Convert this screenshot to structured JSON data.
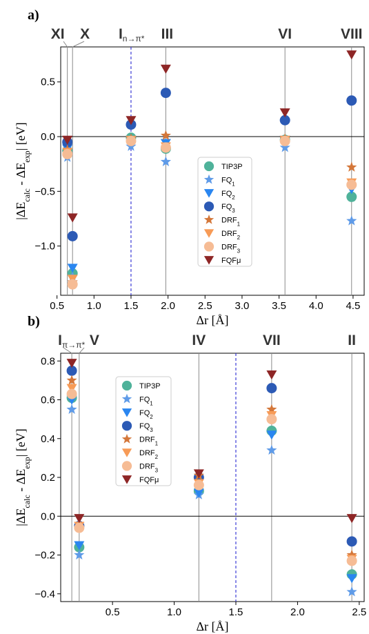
{
  "colors": {
    "TIP3P": "#4fb29a",
    "FQ1": "#5f9be8",
    "FQ2": "#2a86f0",
    "FQ3": "#2c5ab5",
    "DRF1": "#d4773a",
    "DRF2": "#f79b57",
    "DRF3": "#f6bc95",
    "FQFmu": "#8e2626",
    "guide_line": "#8a8a8a",
    "threshold_line": "#3a3ad6"
  },
  "chart_data": [
    {
      "panel_label": "a)",
      "type": "scatter",
      "xlabel": "Δr [Å]",
      "ylabel": "|ΔE_calc - ΔE_exp| [eV]",
      "xlim": [
        0.55,
        4.65
      ],
      "ylim": [
        -1.45,
        0.82
      ],
      "x_ticks": [
        "0.5",
        "1.0",
        "1.5",
        "2.0",
        "2.5",
        "3.0",
        "3.5",
        "4.0",
        "4.5"
      ],
      "y_ticks": [
        "0.5",
        "0.0",
        "−0.5",
        "−1.0"
      ],
      "threshold_x": 1.5,
      "legend_position": "center-right",
      "state_labels": [
        {
          "main": "XI",
          "sub": "",
          "x": 0.64
        },
        {
          "main": "X",
          "sub": "",
          "x": 0.71
        },
        {
          "main": "I",
          "sub": "n→π*",
          "x": 1.5
        },
        {
          "main": "III",
          "sub": "",
          "x": 1.97
        },
        {
          "main": "VI",
          "sub": "",
          "x": 3.58
        },
        {
          "main": "VIII",
          "sub": "",
          "x": 4.48
        }
      ],
      "x": [
        0.64,
        0.71,
        1.5,
        1.97,
        3.58,
        4.48
      ],
      "series": [
        {
          "name": "TIP3P",
          "values": [
            -0.13,
            -1.25,
            -0.01,
            -0.11,
            -0.03,
            -0.55
          ]
        },
        {
          "name": "FQ1",
          "values": [
            -0.19,
            -1.28,
            -0.09,
            -0.23,
            -0.1,
            -0.77
          ]
        },
        {
          "name": "FQ2",
          "values": [
            -0.11,
            -1.2,
            -0.03,
            -0.06,
            -0.03,
            -0.48
          ]
        },
        {
          "name": "FQ3",
          "values": [
            -0.05,
            -0.91,
            0.11,
            0.4,
            0.15,
            0.33
          ]
        },
        {
          "name": "DRF1",
          "values": [
            -0.12,
            -1.33,
            -0.02,
            0.01,
            -0.02,
            -0.28
          ]
        },
        {
          "name": "DRF2",
          "values": [
            -0.14,
            -1.3,
            -0.03,
            -0.09,
            -0.03,
            -0.42
          ]
        },
        {
          "name": "DRF3",
          "values": [
            -0.16,
            -1.35,
            -0.04,
            -0.1,
            -0.04,
            -0.44
          ]
        },
        {
          "name": "FQFμ",
          "values": [
            -0.03,
            -0.74,
            0.15,
            0.62,
            0.22,
            0.75
          ]
        }
      ]
    },
    {
      "panel_label": "b)",
      "type": "scatter",
      "xlabel": "Δr [Å]",
      "ylabel": "|ΔE_calc - ΔE_exp| [eV]",
      "xlim": [
        0.08,
        2.54
      ],
      "ylim": [
        -0.44,
        0.84
      ],
      "x_ticks": [
        "0.5",
        "1.0",
        "1.5",
        "2.0",
        "2.5"
      ],
      "y_ticks": [
        "0.8",
        "0.6",
        "0.4",
        "0.2",
        "0.0",
        "−0.2",
        "−0.4"
      ],
      "threshold_x": 1.5,
      "legend_position": "upper-left",
      "state_labels": [
        {
          "main": "I",
          "sub": "π→π*",
          "x": 0.17
        },
        {
          "main": "V",
          "sub": "",
          "x": 0.23
        },
        {
          "main": "IV",
          "sub": "",
          "x": 1.2
        },
        {
          "main": "VII",
          "sub": "",
          "x": 1.79
        },
        {
          "main": "II",
          "sub": "",
          "x": 2.44
        }
      ],
      "x": [
        0.17,
        0.23,
        1.2,
        1.79,
        2.44
      ],
      "series": [
        {
          "name": "TIP3P",
          "values": [
            0.61,
            -0.16,
            0.13,
            0.44,
            -0.3
          ]
        },
        {
          "name": "FQ1",
          "values": [
            0.55,
            -0.2,
            0.11,
            0.34,
            -0.39
          ]
        },
        {
          "name": "FQ2",
          "values": [
            0.6,
            -0.15,
            0.12,
            0.42,
            -0.32
          ]
        },
        {
          "name": "FQ3",
          "values": [
            0.75,
            -0.05,
            0.2,
            0.66,
            -0.13
          ]
        },
        {
          "name": "DRF1",
          "values": [
            0.7,
            -0.04,
            0.21,
            0.55,
            -0.2
          ]
        },
        {
          "name": "DRF2",
          "values": [
            0.66,
            -0.05,
            0.17,
            0.52,
            -0.22
          ]
        },
        {
          "name": "DRF3",
          "values": [
            0.63,
            -0.06,
            0.16,
            0.5,
            -0.23
          ]
        },
        {
          "name": "FQFμ",
          "values": [
            0.79,
            -0.01,
            0.22,
            0.73,
            -0.01
          ]
        }
      ]
    }
  ]
}
